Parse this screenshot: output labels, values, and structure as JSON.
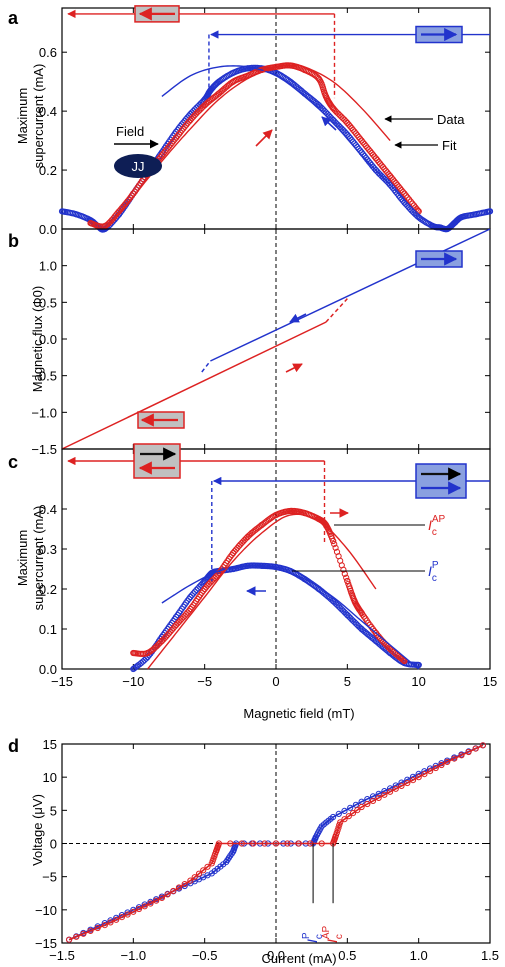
{
  "chart_data": [
    {
      "panel": "a",
      "type": "scatter",
      "ylabel": [
        "Maximum",
        "supercurrent (mA)"
      ],
      "xlim": [
        -15,
        15
      ],
      "ylim": [
        0,
        0.75
      ],
      "yticks": [
        0,
        0.2,
        0.4,
        0.6
      ],
      "ytick_labels": [
        "0.0",
        "0.2",
        "0.4",
        "0.6"
      ],
      "legend": {
        "data": "Data",
        "fit": "Fit"
      },
      "inset": {
        "field_label": "Field",
        "junction_label": "JJ"
      },
      "series": [
        {
          "color": "#2233cc",
          "marker": "circle",
          "sweep": "down",
          "x": [
            -15,
            -14,
            -13,
            -12.5,
            -12,
            -11,
            -10,
            -9,
            -8,
            -7,
            -6,
            -5,
            -4.6,
            -4,
            -3,
            -2,
            -1,
            0,
            1,
            2,
            3,
            4,
            5,
            6,
            7,
            8,
            9,
            10,
            11,
            11.5,
            12,
            12.5,
            13,
            14,
            15
          ],
          "y": [
            0.06,
            0.05,
            0.03,
            0.01,
            0.0,
            0.05,
            0.12,
            0.19,
            0.26,
            0.33,
            0.39,
            0.44,
            0.47,
            0.5,
            0.53,
            0.545,
            0.545,
            0.53,
            0.5,
            0.46,
            0.42,
            0.37,
            0.32,
            0.26,
            0.2,
            0.15,
            0.09,
            0.04,
            0.01,
            0.005,
            0.0,
            0.02,
            0.04,
            0.05,
            0.06
          ]
        },
        {
          "color": "#dd2222",
          "marker": "circle",
          "sweep": "up",
          "x": [
            -13,
            -12,
            -11,
            -10,
            -9,
            -8,
            -7,
            -6,
            -5,
            -4,
            -3,
            -2,
            -1,
            0,
            1,
            2,
            3,
            3.5,
            4,
            5,
            6,
            7,
            8,
            9,
            10
          ],
          "y": [
            0.02,
            0.01,
            0.06,
            0.12,
            0.19,
            0.25,
            0.31,
            0.37,
            0.42,
            0.46,
            0.5,
            0.52,
            0.54,
            0.55,
            0.555,
            0.54,
            0.51,
            0.45,
            0.41,
            0.36,
            0.3,
            0.24,
            0.18,
            0.12,
            0.06
          ]
        },
        {
          "color": "#2233cc",
          "marker": "line",
          "role": "fit",
          "x": [
            -8,
            -6,
            -4,
            -2,
            0,
            2,
            4,
            6,
            8,
            10,
            11.5
          ],
          "y": [
            0.45,
            0.52,
            0.55,
            0.55,
            0.52,
            0.45,
            0.36,
            0.25,
            0.15,
            0.05,
            0.0
          ]
        },
        {
          "color": "#dd2222",
          "marker": "line",
          "role": "fit",
          "x": [
            -12,
            -10,
            -8,
            -6,
            -4,
            -2,
            0,
            1,
            2,
            4,
            6,
            8
          ],
          "y": [
            0.0,
            0.11,
            0.23,
            0.34,
            0.44,
            0.51,
            0.55,
            0.555,
            0.55,
            0.5,
            0.41,
            0.3
          ]
        }
      ],
      "switch_fields": {
        "blue": -4.7,
        "red": 4.1
      },
      "arrow_lines": {
        "red_y": 0.73,
        "blue_y": 0.66
      }
    },
    {
      "panel": "b",
      "type": "line",
      "ylabel": "Magnetic flux (Φ0)",
      "xlim": [
        -15,
        15
      ],
      "ylim": [
        -1.5,
        1.5
      ],
      "yticks": [
        -1.5,
        -1.0,
        -0.5,
        0,
        0.5,
        1.0
      ],
      "ytick_labels": [
        "−1.5",
        "−1.0",
        "−0.5",
        "0.0",
        "0.5",
        "1.0"
      ],
      "series": [
        {
          "color": "#2233cc",
          "x": [
            -4.6,
            15
          ],
          "y": [
            -0.3,
            1.5
          ],
          "dashed_x": [
            -5.2,
            -4.6
          ],
          "dashed_y": [
            -0.45,
            -0.3
          ]
        },
        {
          "color": "#dd2222",
          "x": [
            -15,
            3.5
          ],
          "y": [
            -1.5,
            0.23
          ],
          "dashed_x": [
            3.5,
            5.0
          ],
          "dashed_y": [
            0.23,
            0.55
          ]
        }
      ]
    },
    {
      "panel": "c",
      "type": "scatter",
      "ylabel": [
        "Maximum",
        "supercurrent (mA)"
      ],
      "xlabel": "Magnetic field (mT)",
      "xlim": [
        -15,
        15
      ],
      "ylim": [
        0,
        0.55
      ],
      "xticks": [
        -15,
        -10,
        -5,
        0,
        5,
        10,
        15
      ],
      "xtick_labels": [
        "−15",
        "−10",
        "−5",
        "0",
        "5",
        "10",
        "15"
      ],
      "yticks": [
        0,
        0.1,
        0.2,
        0.3,
        0.4
      ],
      "ytick_labels": [
        "0.0",
        "0.1",
        "0.2",
        "0.3",
        "0.4"
      ],
      "labels": {
        "ic_ap": "AP",
        "ic_p": "P",
        "ic_base": "I",
        "ic_sub": "c"
      },
      "series": [
        {
          "color": "#2233cc",
          "marker": "circle",
          "sweep": "down",
          "x": [
            -10,
            -9,
            -8,
            -7,
            -6,
            -5,
            -4.5,
            -4,
            -3,
            -2,
            -1,
            0,
            1,
            2,
            3,
            4,
            5,
            6,
            7,
            8,
            9,
            10
          ],
          "y": [
            0.0,
            0.03,
            0.08,
            0.13,
            0.18,
            0.22,
            0.24,
            0.245,
            0.25,
            0.258,
            0.258,
            0.255,
            0.245,
            0.225,
            0.2,
            0.17,
            0.135,
            0.1,
            0.07,
            0.04,
            0.015,
            0.01
          ]
        },
        {
          "color": "#dd2222",
          "marker": "circle",
          "sweep": "up",
          "x": [
            -10,
            -9,
            -8,
            -7,
            -6,
            -5,
            -4,
            -3,
            -2,
            -1,
            0,
            1,
            2,
            3,
            3.5,
            4,
            5,
            5.5,
            6,
            7,
            8,
            9
          ],
          "y": [
            0.04,
            0.04,
            0.07,
            0.11,
            0.15,
            0.2,
            0.24,
            0.29,
            0.33,
            0.36,
            0.385,
            0.395,
            0.39,
            0.375,
            0.36,
            0.32,
            0.22,
            0.17,
            0.14,
            0.09,
            0.05,
            0.02
          ]
        },
        {
          "color": "#2233cc",
          "marker": "line",
          "role": "fit",
          "x": [
            -8,
            -6,
            -4,
            -2,
            0,
            2,
            4,
            6,
            8,
            10
          ],
          "y": [
            0.165,
            0.21,
            0.245,
            0.258,
            0.25,
            0.225,
            0.18,
            0.12,
            0.06,
            0.0
          ]
        },
        {
          "color": "#dd2222",
          "marker": "line",
          "role": "fit",
          "x": [
            -9,
            -7,
            -5,
            -3,
            -1,
            1,
            3,
            5,
            7
          ],
          "y": [
            0.0,
            0.09,
            0.18,
            0.27,
            0.34,
            0.385,
            0.37,
            0.3,
            0.2
          ]
        }
      ],
      "switch_fields": {
        "blue": -4.5,
        "red": 3.4
      },
      "arrow_lines": {
        "red_y": 0.52,
        "blue_y": 0.47
      }
    },
    {
      "panel": "d",
      "type": "scatter",
      "xlabel": "Current (mA)",
      "ylabel": "Voltage (μV)",
      "xlim": [
        -1.5,
        1.5
      ],
      "ylim": [
        -15,
        15
      ],
      "xticks": [
        -1.5,
        -1.0,
        -0.5,
        0,
        0.5,
        1.0,
        1.5
      ],
      "xtick_labels": [
        "−1.5",
        "−1.0",
        "−0.5",
        "0.0",
        "0.5",
        "1.0",
        "1.5"
      ],
      "yticks": [
        -15,
        -10,
        -5,
        0,
        5,
        10,
        15
      ],
      "ytick_labels": [
        "−15",
        "−10",
        "−5",
        "0",
        "5",
        "10",
        "15"
      ],
      "critical_currents": {
        "p": 0.26,
        "ap": 0.4
      },
      "series": [
        {
          "color": "#2233cc",
          "marker": "circle",
          "state": "P",
          "x": [
            -1.45,
            -1.2,
            -1.0,
            -0.8,
            -0.6,
            -0.45,
            -0.35,
            -0.3,
            -0.28,
            0.0,
            0.26,
            0.28,
            0.32,
            0.4,
            0.6,
            0.8,
            1.0,
            1.2,
            1.45
          ],
          "y": [
            -14.5,
            -12,
            -10,
            -8,
            -6,
            -4.5,
            -2.8,
            -1.2,
            0,
            0,
            0,
            1,
            2.6,
            4,
            6.3,
            8.3,
            10.5,
            12.5,
            14.8
          ]
        },
        {
          "color": "#dd2222",
          "marker": "circle",
          "state": "AP",
          "x": [
            -1.45,
            -1.2,
            -1.0,
            -0.8,
            -0.6,
            -0.45,
            -0.42,
            -0.4,
            0.0,
            0.4,
            0.42,
            0.45,
            0.6,
            0.8,
            1.0,
            1.2,
            1.45
          ],
          "y": [
            -14.5,
            -12.3,
            -10.3,
            -8.2,
            -5.6,
            -3,
            -1.2,
            0,
            0,
            0,
            1.2,
            3.2,
            5.5,
            7.8,
            10,
            12.3,
            14.8
          ]
        }
      ]
    }
  ],
  "panel_letters": [
    "a",
    "b",
    "c",
    "d"
  ]
}
